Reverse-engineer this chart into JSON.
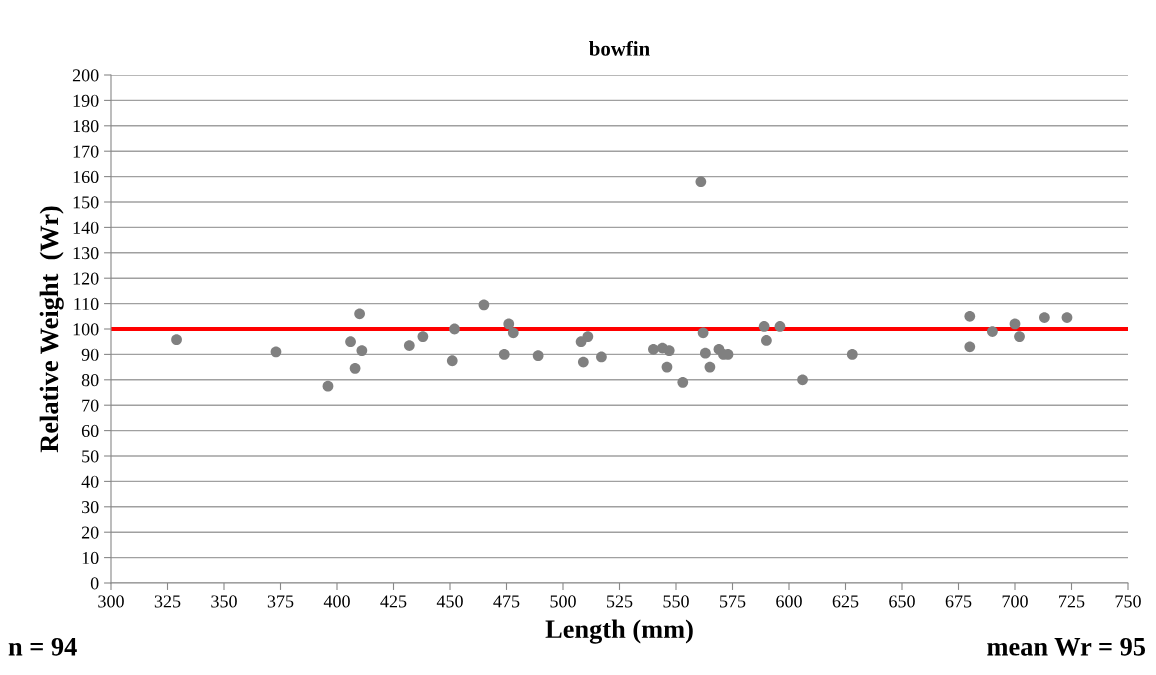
{
  "chart_data": {
    "type": "scatter",
    "title": "bowfin",
    "xlabel": "Length (mm)",
    "ylabel": "Relative Weight  (Wr)",
    "x": [
      329,
      373,
      396,
      406,
      408,
      410,
      411,
      432,
      438,
      451,
      452,
      465,
      474,
      476,
      478,
      489,
      508,
      509,
      511,
      517,
      540,
      544,
      547,
      546,
      553,
      561,
      562,
      563,
      565,
      569,
      571,
      573,
      589,
      590,
      596,
      606,
      628,
      680,
      680,
      690,
      700,
      702,
      713,
      723
    ],
    "values": [
      95.8,
      91,
      77.5,
      95,
      84.5,
      106,
      91.5,
      93.5,
      97,
      87.5,
      100,
      109.5,
      90,
      102,
      98.5,
      89.5,
      95,
      87,
      97,
      89,
      92,
      92.5,
      91.5,
      85,
      79,
      158,
      98.5,
      90.5,
      85,
      92,
      90,
      90,
      101,
      95.5,
      101,
      80,
      90,
      105,
      93,
      99,
      102,
      97,
      104.5,
      104.5
    ],
    "color": "#808080",
    "marker": "circle",
    "xlim": [
      300,
      750
    ],
    "xticks": [
      300,
      325,
      350,
      375,
      400,
      425,
      450,
      475,
      500,
      525,
      550,
      575,
      600,
      625,
      650,
      675,
      700,
      725,
      750
    ],
    "ylim": [
      0,
      200
    ],
    "yticks": [
      0,
      10,
      20,
      30,
      40,
      50,
      60,
      70,
      80,
      90,
      100,
      110,
      120,
      130,
      140,
      150,
      160,
      170,
      180,
      190,
      200
    ],
    "grid": "y",
    "ref_lines": [
      {
        "axis": "y",
        "value": 100,
        "color": "#ff0000"
      }
    ],
    "annotations": [
      "n = 94",
      "mean Wr = 95"
    ]
  }
}
